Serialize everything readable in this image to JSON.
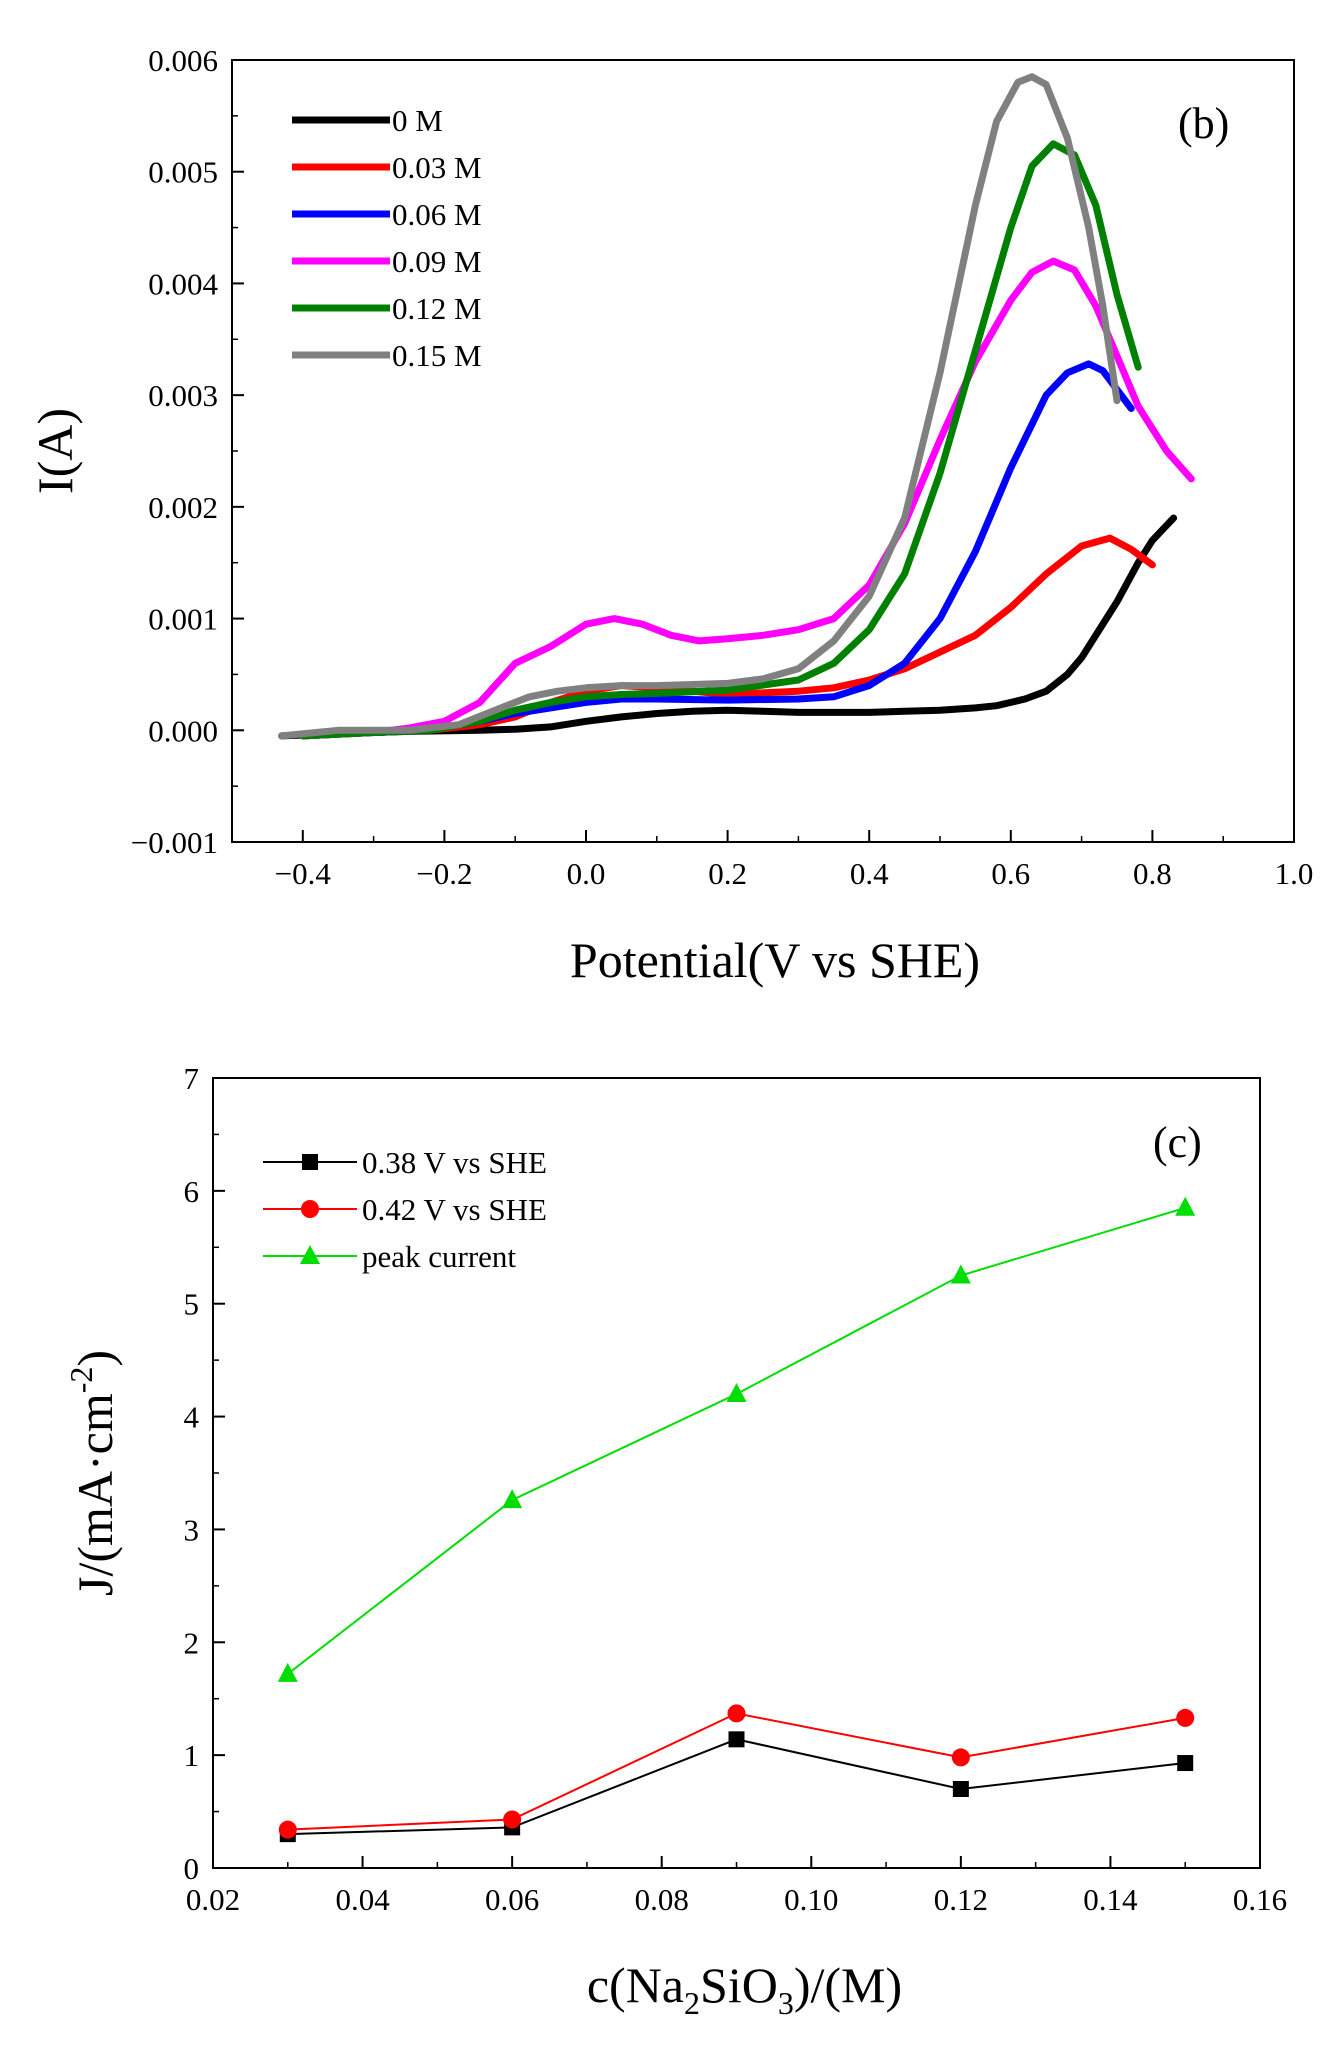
{
  "chart_data": [
    {
      "type": "line",
      "panel_label": "(b)",
      "xlabel": "Potential(V vs SHE)",
      "ylabel": "I(A)",
      "xlim": [
        -0.5,
        1.0
      ],
      "ylim": [
        -0.001,
        0.006
      ],
      "xticks": [
        -0.4,
        -0.2,
        0.0,
        0.2,
        0.4,
        0.6,
        0.8,
        1.0
      ],
      "xtick_labels": [
        "−0.4",
        "−0.2",
        "0.0",
        "0.2",
        "0.4",
        "0.6",
        "0.8",
        "1.0"
      ],
      "yticks": [
        -0.001,
        0.0,
        0.001,
        0.002,
        0.003,
        0.004,
        0.005,
        0.006
      ],
      "ytick_labels": [
        "−0.001",
        "0.000",
        "0.001",
        "0.002",
        "0.003",
        "0.004",
        "0.005",
        "0.006"
      ],
      "grid": false,
      "legend_position": "top-left",
      "series": [
        {
          "name": "0 M",
          "color": "#000000",
          "x": [
            -0.43,
            -0.35,
            -0.25,
            -0.15,
            -0.1,
            -0.05,
            0.0,
            0.05,
            0.1,
            0.15,
            0.2,
            0.25,
            0.3,
            0.35,
            0.4,
            0.45,
            0.5,
            0.55,
            0.58,
            0.6,
            0.62,
            0.65,
            0.68,
            0.7,
            0.72,
            0.75,
            0.78,
            0.8,
            0.83
          ],
          "y": [
            -5e-05,
            -3e-05,
            -1e-05,
            0.0,
            1e-05,
            3e-05,
            8e-05,
            0.00012,
            0.00015,
            0.00017,
            0.00018,
            0.00017,
            0.00016,
            0.00016,
            0.00016,
            0.00017,
            0.00018,
            0.0002,
            0.00022,
            0.00025,
            0.00028,
            0.00035,
            0.0005,
            0.00065,
            0.00085,
            0.00115,
            0.0015,
            0.0017,
            0.0019
          ]
        },
        {
          "name": "0.03 M",
          "color": "#ff0000",
          "x": [
            -0.4,
            -0.3,
            -0.22,
            -0.15,
            -0.1,
            -0.05,
            0.0,
            0.05,
            0.1,
            0.2,
            0.3,
            0.35,
            0.4,
            0.45,
            0.5,
            0.55,
            0.6,
            0.65,
            0.7,
            0.74,
            0.77,
            0.8
          ],
          "y": [
            -5e-05,
            -2e-05,
            0.0,
            5e-05,
            0.00012,
            0.00025,
            0.00035,
            0.0004,
            0.00038,
            0.00032,
            0.00035,
            0.00038,
            0.00045,
            0.00055,
            0.0007,
            0.00085,
            0.0011,
            0.0014,
            0.00165,
            0.00172,
            0.00162,
            0.00148
          ]
        },
        {
          "name": "0.06 M",
          "color": "#0000ff",
          "x": [
            -0.4,
            -0.3,
            -0.22,
            -0.15,
            -0.1,
            -0.05,
            0.0,
            0.05,
            0.1,
            0.2,
            0.3,
            0.35,
            0.4,
            0.45,
            0.5,
            0.55,
            0.6,
            0.65,
            0.68,
            0.71,
            0.73,
            0.75,
            0.77
          ],
          "y": [
            -5e-05,
            -2e-05,
            0.0,
            8e-05,
            0.00015,
            0.0002,
            0.00025,
            0.00028,
            0.00028,
            0.00027,
            0.00028,
            0.0003,
            0.0004,
            0.0006,
            0.001,
            0.0016,
            0.00235,
            0.003,
            0.0032,
            0.00328,
            0.00322,
            0.00305,
            0.00288
          ]
        },
        {
          "name": "0.09 M",
          "color": "#ff00ff",
          "x": [
            -0.4,
            -0.3,
            -0.25,
            -0.2,
            -0.15,
            -0.1,
            -0.05,
            0.0,
            0.04,
            0.08,
            0.12,
            0.16,
            0.2,
            0.25,
            0.3,
            0.35,
            0.4,
            0.45,
            0.5,
            0.55,
            0.6,
            0.63,
            0.66,
            0.69,
            0.72,
            0.75,
            0.78,
            0.82,
            0.855
          ],
          "y": [
            -5e-05,
            -2e-05,
            2e-05,
            8e-05,
            0.00025,
            0.0006,
            0.00075,
            0.00095,
            0.001,
            0.00095,
            0.00085,
            0.0008,
            0.00082,
            0.00085,
            0.0009,
            0.001,
            0.0013,
            0.00185,
            0.0026,
            0.0033,
            0.00385,
            0.0041,
            0.0042,
            0.00412,
            0.0038,
            0.00335,
            0.0029,
            0.0025,
            0.00225
          ]
        },
        {
          "name": "0.12 M",
          "color": "#008000",
          "x": [
            -0.4,
            -0.3,
            -0.22,
            -0.15,
            -0.1,
            -0.05,
            0.0,
            0.05,
            0.1,
            0.2,
            0.3,
            0.35,
            0.4,
            0.45,
            0.5,
            0.55,
            0.6,
            0.63,
            0.66,
            0.69,
            0.72,
            0.75,
            0.78
          ],
          "y": [
            -5e-05,
            -2e-05,
            0.0,
            8e-05,
            0.00018,
            0.00025,
            0.0003,
            0.00032,
            0.00033,
            0.00036,
            0.00045,
            0.0006,
            0.0009,
            0.0014,
            0.0023,
            0.0034,
            0.0045,
            0.00505,
            0.00525,
            0.00515,
            0.0047,
            0.0039,
            0.00325
          ]
        },
        {
          "name": "0.15 M",
          "color": "#808080",
          "x": [
            -0.43,
            -0.35,
            -0.25,
            -0.18,
            -0.12,
            -0.08,
            -0.04,
            0.0,
            0.05,
            0.1,
            0.2,
            0.25,
            0.3,
            0.35,
            0.4,
            0.45,
            0.5,
            0.55,
            0.58,
            0.61,
            0.63,
            0.65,
            0.68,
            0.71,
            0.73,
            0.75
          ],
          "y": [
            -5e-05,
            0.0,
            0.0,
            5e-05,
            0.0002,
            0.0003,
            0.00035,
            0.00038,
            0.0004,
            0.0004,
            0.00042,
            0.00046,
            0.00055,
            0.0008,
            0.0012,
            0.0019,
            0.0032,
            0.0047,
            0.00545,
            0.0058,
            0.00585,
            0.00578,
            0.0053,
            0.0045,
            0.0038,
            0.00295
          ]
        }
      ]
    },
    {
      "type": "line",
      "panel_label": "(c)",
      "xlabel_prefix": "c(Na",
      "xlabel_sub1": "2",
      "xlabel_mid": "SiO",
      "xlabel_sub2": "3",
      "xlabel_suffix": ")/(M)",
      "ylabel_main": "J/(mA·cm",
      "ylabel_sup": "-2",
      "ylabel_end": ")",
      "xlim": [
        0.02,
        0.16
      ],
      "ylim": [
        0,
        7
      ],
      "xticks": [
        0.02,
        0.04,
        0.06,
        0.08,
        0.1,
        0.12,
        0.14,
        0.16
      ],
      "xtick_labels": [
        "0.02",
        "0.04",
        "0.06",
        "0.08",
        "0.10",
        "0.12",
        "0.14",
        "0.16"
      ],
      "yticks": [
        0,
        1,
        2,
        3,
        4,
        5,
        6,
        7
      ],
      "ytick_labels": [
        "0",
        "1",
        "2",
        "3",
        "4",
        "5",
        "6",
        "7"
      ],
      "grid": false,
      "legend_position": "top-left",
      "x": [
        0.03,
        0.06,
        0.09,
        0.12,
        0.15
      ],
      "series": [
        {
          "name": "0.38 V vs SHE",
          "color": "#000000",
          "marker": "square",
          "values": [
            0.3,
            0.36,
            1.14,
            0.7,
            0.93
          ]
        },
        {
          "name": "0.42 V vs SHE",
          "color": "#ff0000",
          "marker": "circle",
          "values": [
            0.34,
            0.43,
            1.37,
            0.98,
            1.33
          ]
        },
        {
          "name": "peak current",
          "color": "#00dd00",
          "marker": "triangle",
          "values": [
            1.72,
            3.26,
            4.2,
            5.25,
            5.85
          ]
        }
      ]
    }
  ]
}
